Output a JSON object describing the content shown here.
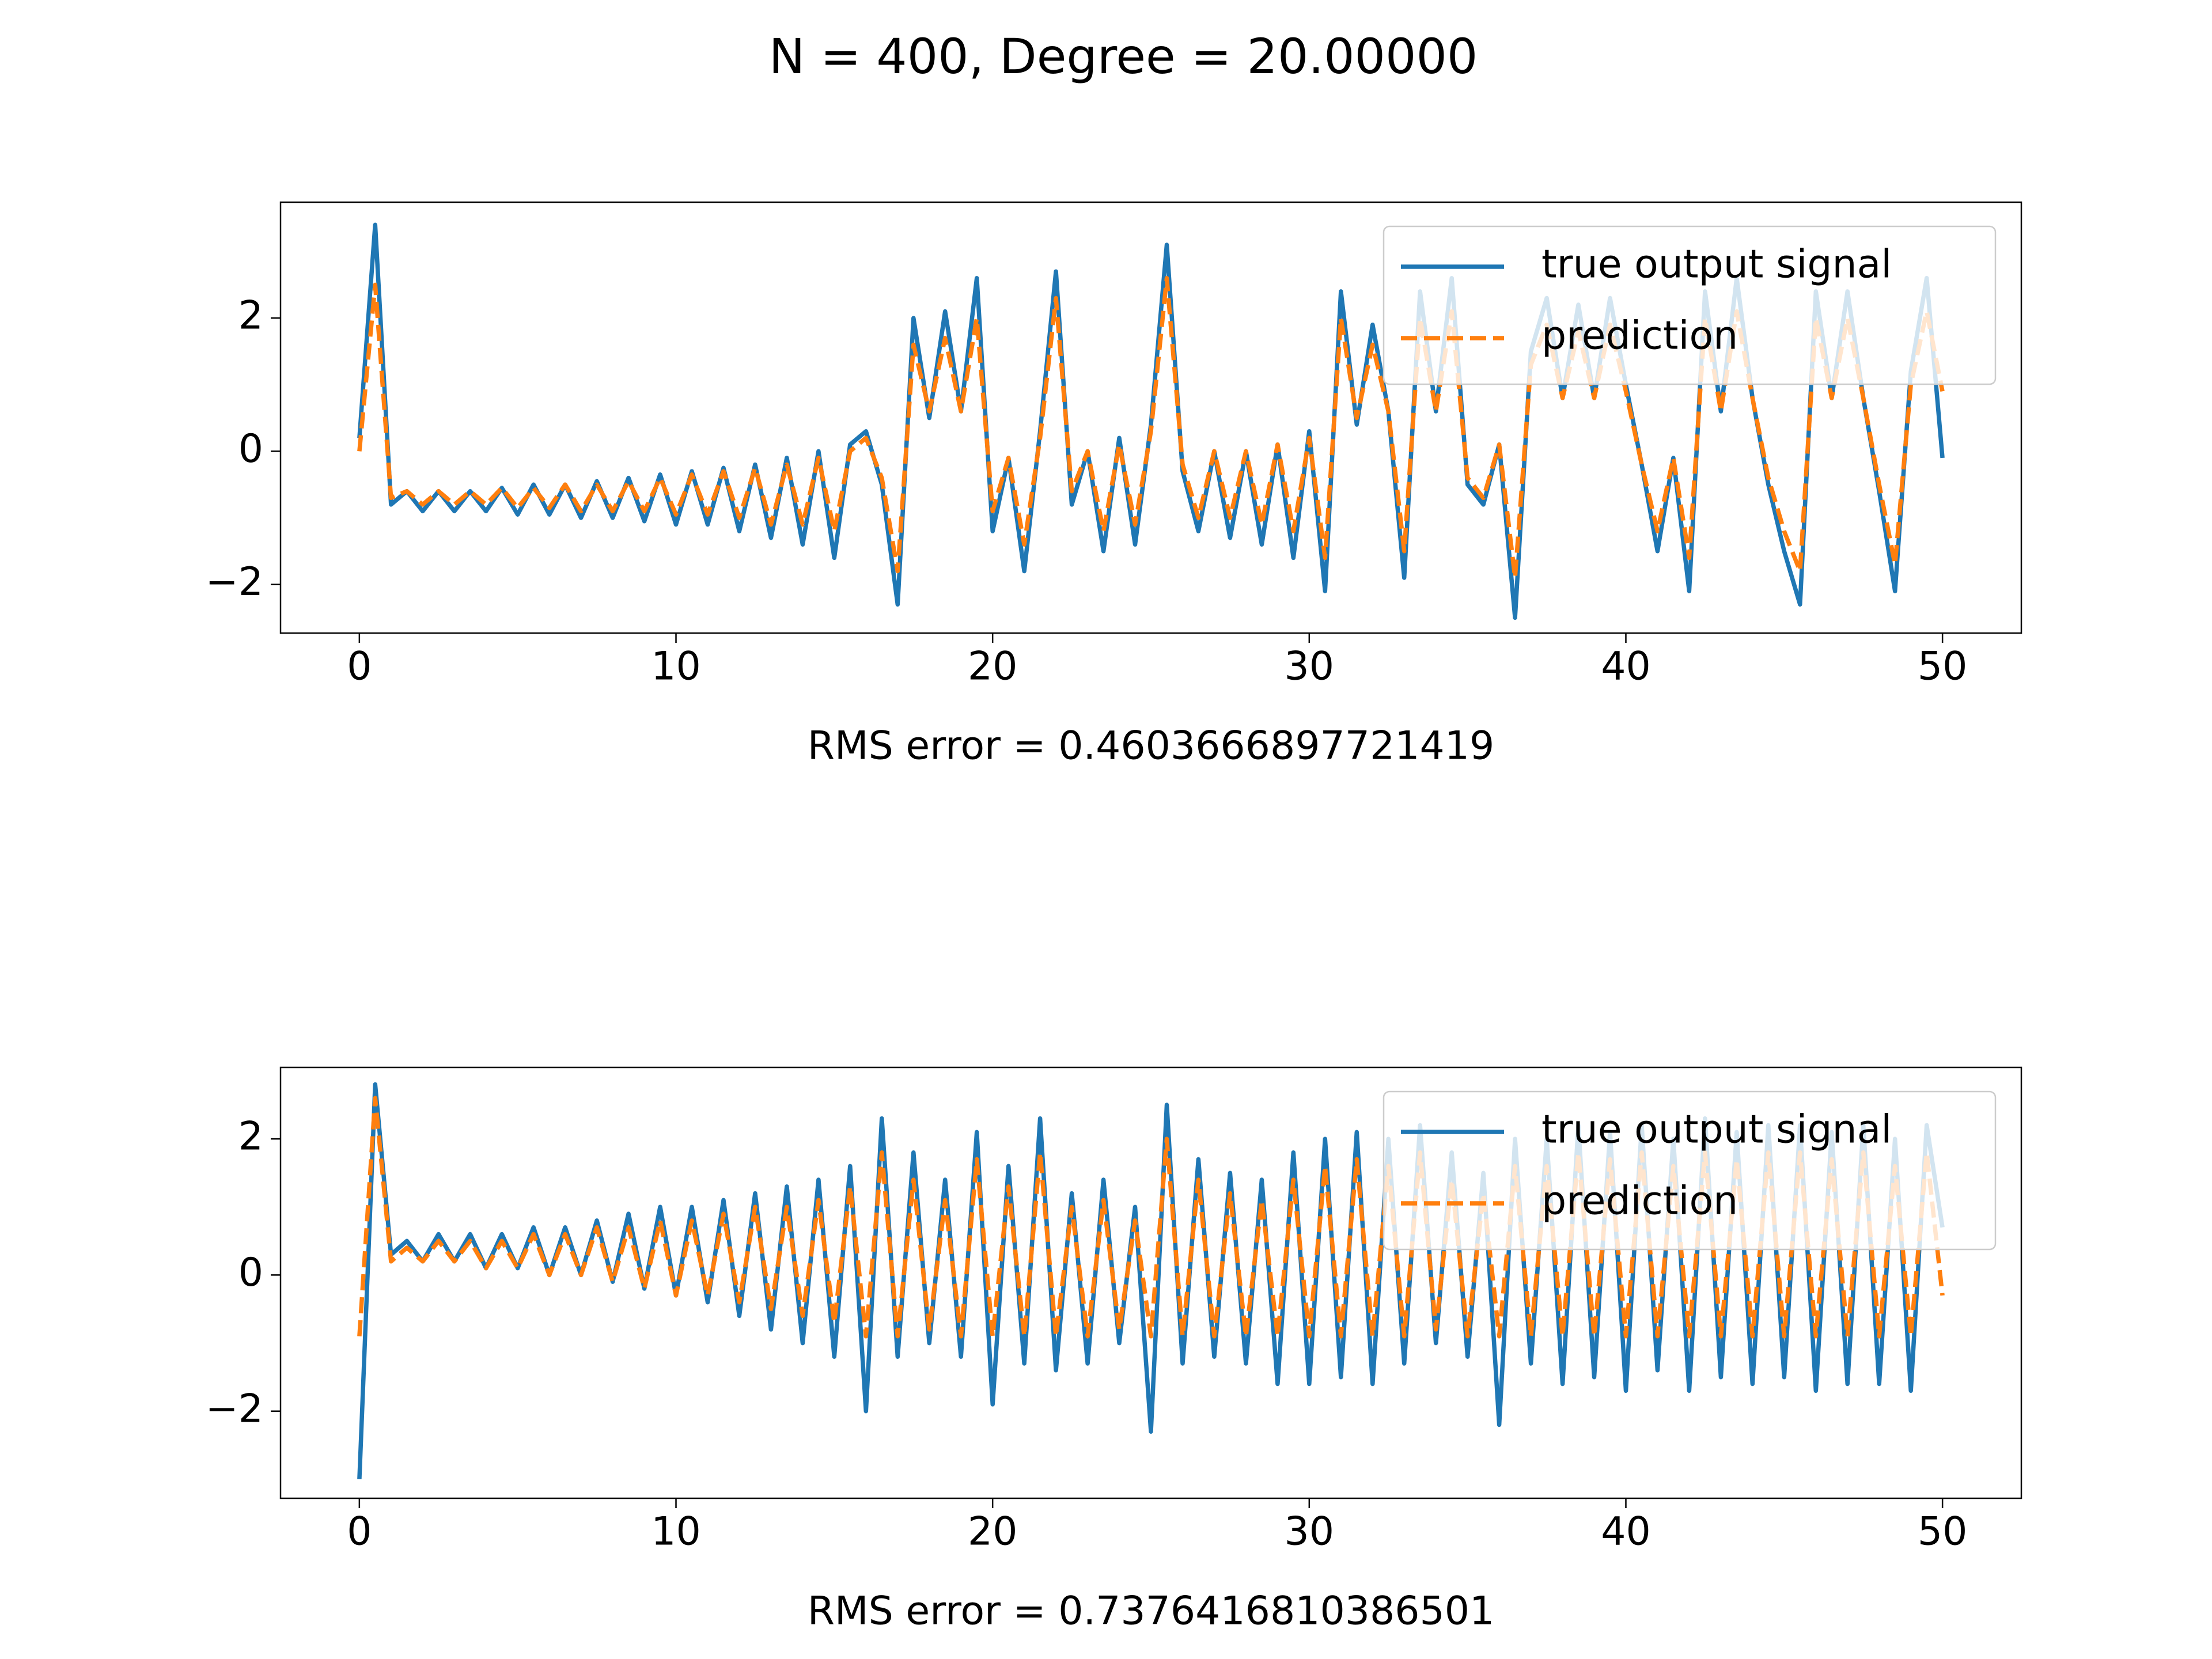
{
  "title": "N = 400, Degree = 20.00000",
  "chart_data": [
    {
      "type": "line",
      "x_label": "RMS error = 0.4603666897721419",
      "legend": "upper right",
      "xlim": [
        -2.49,
        52.49
      ],
      "ylim": [
        -2.73,
        3.74
      ],
      "xticks": [
        0,
        10,
        20,
        30,
        40,
        50
      ],
      "yticks": [
        {
          "value": -2,
          "label": "−2"
        },
        0,
        2
      ],
      "x": [
        0,
        0.5,
        1,
        1.5,
        2,
        2.5,
        3,
        3.5,
        4,
        4.5,
        5,
        5.5,
        6,
        6.5,
        7,
        7.5,
        8,
        8.5,
        9,
        9.5,
        10,
        10.5,
        11,
        11.5,
        12,
        12.5,
        13,
        13.5,
        14,
        14.5,
        15,
        15.5,
        16,
        16.5,
        17,
        17.5,
        18,
        18.5,
        19,
        19.5,
        20,
        20.5,
        21,
        21.5,
        22,
        22.5,
        23,
        23.5,
        24,
        24.5,
        25,
        25.5,
        26,
        26.5,
        27,
        27.5,
        28,
        28.5,
        29,
        29.5,
        30,
        30.5,
        31,
        31.5,
        32,
        32.5,
        33,
        33.5,
        34,
        34.5,
        35,
        35.5,
        36,
        36.5,
        37,
        37.5,
        38,
        38.5,
        39,
        39.5,
        40,
        40.5,
        41,
        41.5,
        42,
        42.5,
        43,
        43.5,
        44,
        44.5,
        45,
        45.5,
        46,
        46.5,
        47,
        47.5,
        48,
        48.5,
        49,
        49.5,
        50
      ],
      "series": [
        {
          "name": "true output signal",
          "color": "#1f77b4",
          "linestyle": "solid",
          "values": [
            0.2,
            3.4,
            -0.8,
            -0.6,
            -0.9,
            -0.6,
            -0.9,
            -0.6,
            -0.9,
            -0.55,
            -0.95,
            -0.5,
            -0.95,
            -0.5,
            -1.0,
            -0.45,
            -1.0,
            -0.4,
            -1.05,
            -0.35,
            -1.1,
            -0.3,
            -1.1,
            -0.25,
            -1.2,
            -0.2,
            -1.3,
            -0.1,
            -1.4,
            0.0,
            -1.6,
            0.1,
            0.3,
            -0.5,
            -2.3,
            2.0,
            0.5,
            2.1,
            0.6,
            2.6,
            -1.2,
            -0.1,
            -1.8,
            0.3,
            2.7,
            -0.8,
            0.0,
            -1.5,
            0.2,
            -1.4,
            0.4,
            3.1,
            -0.3,
            -1.2,
            0.0,
            -1.3,
            0.0,
            -1.4,
            0.1,
            -1.6,
            0.3,
            -2.1,
            2.4,
            0.4,
            1.9,
            0.6,
            -1.9,
            2.4,
            0.6,
            2.6,
            -0.5,
            -0.8,
            0.1,
            -2.5,
            1.5,
            2.3,
            0.8,
            2.2,
            0.8,
            2.3,
            1.0,
            -0.2,
            -1.5,
            -0.1,
            -2.1,
            2.4,
            0.6,
            2.6,
            0.8,
            -0.5,
            -1.5,
            -2.3,
            2.4,
            0.8,
            2.4,
            0.8,
            -0.6,
            -2.1,
            1.2,
            2.6,
            -0.1
          ]
        },
        {
          "name": "prediction",
          "color": "#ff7f0e",
          "linestyle": "dashed",
          "values": [
            0.0,
            2.5,
            -0.7,
            -0.6,
            -0.8,
            -0.6,
            -0.8,
            -0.6,
            -0.8,
            -0.55,
            -0.85,
            -0.55,
            -0.85,
            -0.5,
            -0.9,
            -0.5,
            -0.9,
            -0.45,
            -0.9,
            -0.4,
            -0.95,
            -0.35,
            -0.95,
            -0.3,
            -1.0,
            -0.25,
            -1.1,
            -0.2,
            -1.1,
            -0.1,
            -1.2,
            0.0,
            0.2,
            -0.4,
            -1.8,
            1.6,
            0.6,
            1.7,
            0.6,
            2.0,
            -0.9,
            -0.1,
            -1.4,
            0.2,
            2.3,
            -0.6,
            0.0,
            -1.2,
            0.1,
            -1.1,
            0.3,
            2.6,
            -0.2,
            -1.0,
            0.0,
            -1.0,
            0.0,
            -1.1,
            0.1,
            -1.2,
            0.2,
            -1.6,
            2.0,
            0.5,
            1.6,
            0.6,
            -1.5,
            2.0,
            0.6,
            2.1,
            -0.4,
            -0.7,
            0.1,
            -1.9,
            1.3,
            1.9,
            0.8,
            1.8,
            0.8,
            1.9,
            0.9,
            -0.2,
            -1.2,
            -0.1,
            -1.6,
            2.0,
            0.6,
            2.1,
            0.8,
            -0.4,
            -1.2,
            -1.8,
            2.0,
            0.8,
            2.0,
            0.8,
            -0.5,
            -1.7,
            1.0,
            2.1,
            0.9
          ]
        }
      ]
    },
    {
      "type": "line",
      "x_label": "RMS error = 0.7376416810386501",
      "legend": "upper right",
      "xlim": [
        -2.49,
        52.49
      ],
      "ylim": [
        -3.28,
        3.05
      ],
      "xticks": [
        0,
        10,
        20,
        30,
        40,
        50
      ],
      "yticks": [
        {
          "value": -2,
          "label": "−2"
        },
        0,
        2
      ],
      "x": [
        0,
        0.5,
        1,
        1.5,
        2,
        2.5,
        3,
        3.5,
        4,
        4.5,
        5,
        5.5,
        6,
        6.5,
        7,
        7.5,
        8,
        8.5,
        9,
        9.5,
        10,
        10.5,
        11,
        11.5,
        12,
        12.5,
        13,
        13.5,
        14,
        14.5,
        15,
        15.5,
        16,
        16.5,
        17,
        17.5,
        18,
        18.5,
        19,
        19.5,
        20,
        20.5,
        21,
        21.5,
        22,
        22.5,
        23,
        23.5,
        24,
        24.5,
        25,
        25.5,
        26,
        26.5,
        27,
        27.5,
        28,
        28.5,
        29,
        29.5,
        30,
        30.5,
        31,
        31.5,
        32,
        32.5,
        33,
        33.5,
        34,
        34.5,
        35,
        35.5,
        36,
        36.5,
        37,
        37.5,
        38,
        38.5,
        39,
        39.5,
        40,
        40.5,
        41,
        41.5,
        42,
        42.5,
        43,
        43.5,
        44,
        44.5,
        45,
        45.5,
        46,
        46.5,
        47,
        47.5,
        48,
        48.5,
        49,
        49.5,
        50
      ],
      "series": [
        {
          "name": "true output signal",
          "color": "#1f77b4",
          "linestyle": "solid",
          "values": [
            -3.0,
            2.8,
            0.3,
            0.5,
            0.2,
            0.6,
            0.2,
            0.6,
            0.1,
            0.6,
            0.1,
            0.7,
            0.0,
            0.7,
            0.0,
            0.8,
            -0.1,
            0.9,
            -0.2,
            1.0,
            -0.3,
            1.0,
            -0.4,
            1.1,
            -0.6,
            1.2,
            -0.8,
            1.3,
            -1.0,
            1.4,
            -1.2,
            1.6,
            -2.0,
            2.3,
            -1.2,
            1.8,
            -1.0,
            1.4,
            -1.2,
            2.1,
            -1.9,
            1.6,
            -1.3,
            2.3,
            -1.4,
            1.2,
            -1.3,
            1.4,
            -1.0,
            1.0,
            -2.3,
            2.5,
            -1.3,
            1.7,
            -1.2,
            1.5,
            -1.3,
            1.4,
            -1.6,
            1.8,
            -1.6,
            2.0,
            -1.5,
            2.1,
            -1.6,
            2.0,
            -1.3,
            2.2,
            -1.0,
            1.8,
            -1.2,
            1.5,
            -2.2,
            2.0,
            -1.3,
            2.0,
            -1.6,
            2.2,
            -1.5,
            2.1,
            -1.7,
            2.2,
            -1.4,
            2.0,
            -1.7,
            2.3,
            -1.5,
            2.1,
            -1.6,
            2.2,
            -1.5,
            2.2,
            -1.7,
            2.1,
            -1.6,
            2.2,
            -1.6,
            2.0,
            -1.7,
            2.2,
            0.7
          ]
        },
        {
          "name": "prediction",
          "color": "#ff7f0e",
          "linestyle": "dashed",
          "values": [
            -0.9,
            2.6,
            0.2,
            0.4,
            0.2,
            0.5,
            0.2,
            0.5,
            0.1,
            0.5,
            0.1,
            0.6,
            0.0,
            0.6,
            0.0,
            0.7,
            -0.1,
            0.7,
            -0.2,
            0.8,
            -0.3,
            0.8,
            -0.3,
            0.9,
            -0.4,
            1.0,
            -0.5,
            1.0,
            -0.6,
            1.1,
            -0.7,
            1.3,
            -0.9,
            1.8,
            -0.9,
            1.4,
            -0.8,
            1.1,
            -0.9,
            1.7,
            -0.9,
            1.3,
            -0.9,
            1.8,
            -0.9,
            1.0,
            -0.9,
            1.1,
            -0.8,
            0.8,
            -0.9,
            2.0,
            -0.9,
            1.4,
            -0.9,
            1.2,
            -0.9,
            1.1,
            -0.9,
            1.4,
            -0.9,
            1.6,
            -0.9,
            1.7,
            -0.9,
            1.6,
            -0.9,
            1.8,
            -0.8,
            1.4,
            -0.9,
            1.2,
            -0.9,
            1.6,
            -0.9,
            1.6,
            -0.9,
            1.8,
            -0.9,
            1.7,
            -0.9,
            1.8,
            -0.9,
            1.6,
            -0.9,
            1.8,
            -0.9,
            1.7,
            -0.9,
            1.8,
            -0.9,
            1.8,
            -0.9,
            1.7,
            -0.9,
            1.8,
            -0.9,
            1.6,
            -0.9,
            1.8,
            -0.3
          ]
        }
      ]
    }
  ]
}
